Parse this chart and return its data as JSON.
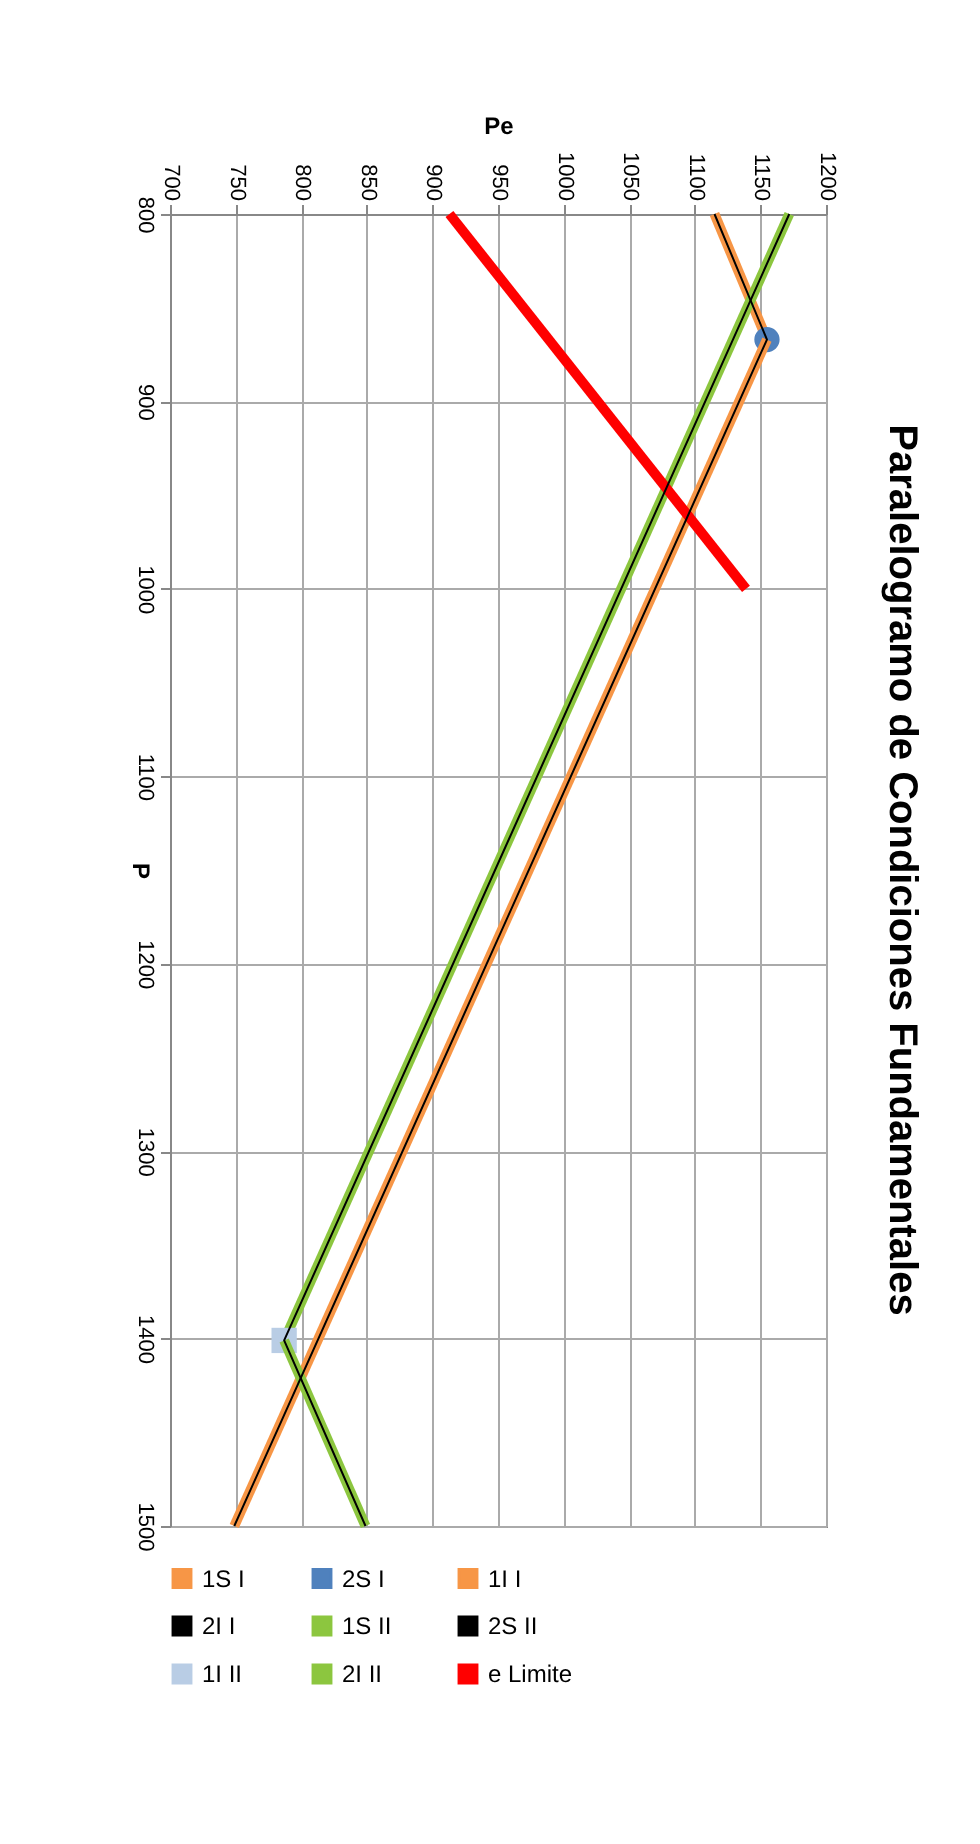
{
  "chart_data": {
    "type": "line",
    "title": "Paralelogramo de Condiciones Fundamentales",
    "xlabel": "Pe",
    "ylabel": "P",
    "xlim": [
      700,
      1200
    ],
    "xticks": [
      700,
      750,
      800,
      850,
      900,
      950,
      1000,
      1050,
      1100,
      1150,
      1200
    ],
    "ylim": [
      1500,
      800
    ],
    "yticks": [
      800,
      900,
      1000,
      1100,
      1200,
      1300,
      1400,
      1500
    ],
    "grid": true,
    "legend": "bottom",
    "series": [
      {
        "name": "1S I",
        "color": "#f79646",
        "x": [
          1115,
          1155
        ],
        "values": [
          800,
          867
        ]
      },
      {
        "name": "2S I",
        "type": "scatter",
        "marker": "circle",
        "color": "#4f81bd",
        "x": [
          1155
        ],
        "values": [
          867
        ]
      },
      {
        "name": "1I I",
        "color": "#f79646",
        "x": [
          1155,
          749
        ],
        "values": [
          867,
          1500
        ]
      },
      {
        "name": "2I I",
        "color": "#000000",
        "x": [
          1115,
          1155,
          749
        ],
        "values": [
          800,
          867,
          1500
        ]
      },
      {
        "name": "1S II",
        "color": "#8cc63f",
        "x": [
          1172,
          787
        ],
        "values": [
          800,
          1401
        ]
      },
      {
        "name": "2S II",
        "color": "#000000",
        "x": [
          1172,
          787,
          849
        ],
        "values": [
          800,
          1401,
          1500
        ]
      },
      {
        "name": "1I II",
        "type": "scatter",
        "marker": "square",
        "color": "#b9cde5",
        "x": [
          787
        ],
        "values": [
          1401
        ]
      },
      {
        "name": "2I II",
        "color": "#8cc63f",
        "x": [
          787,
          849
        ],
        "values": [
          1401,
          1500
        ]
      },
      {
        "name": "e Limite",
        "color": "#ff0000",
        "x": [
          913,
          1139
        ],
        "values": [
          800,
          1000
        ]
      }
    ]
  }
}
